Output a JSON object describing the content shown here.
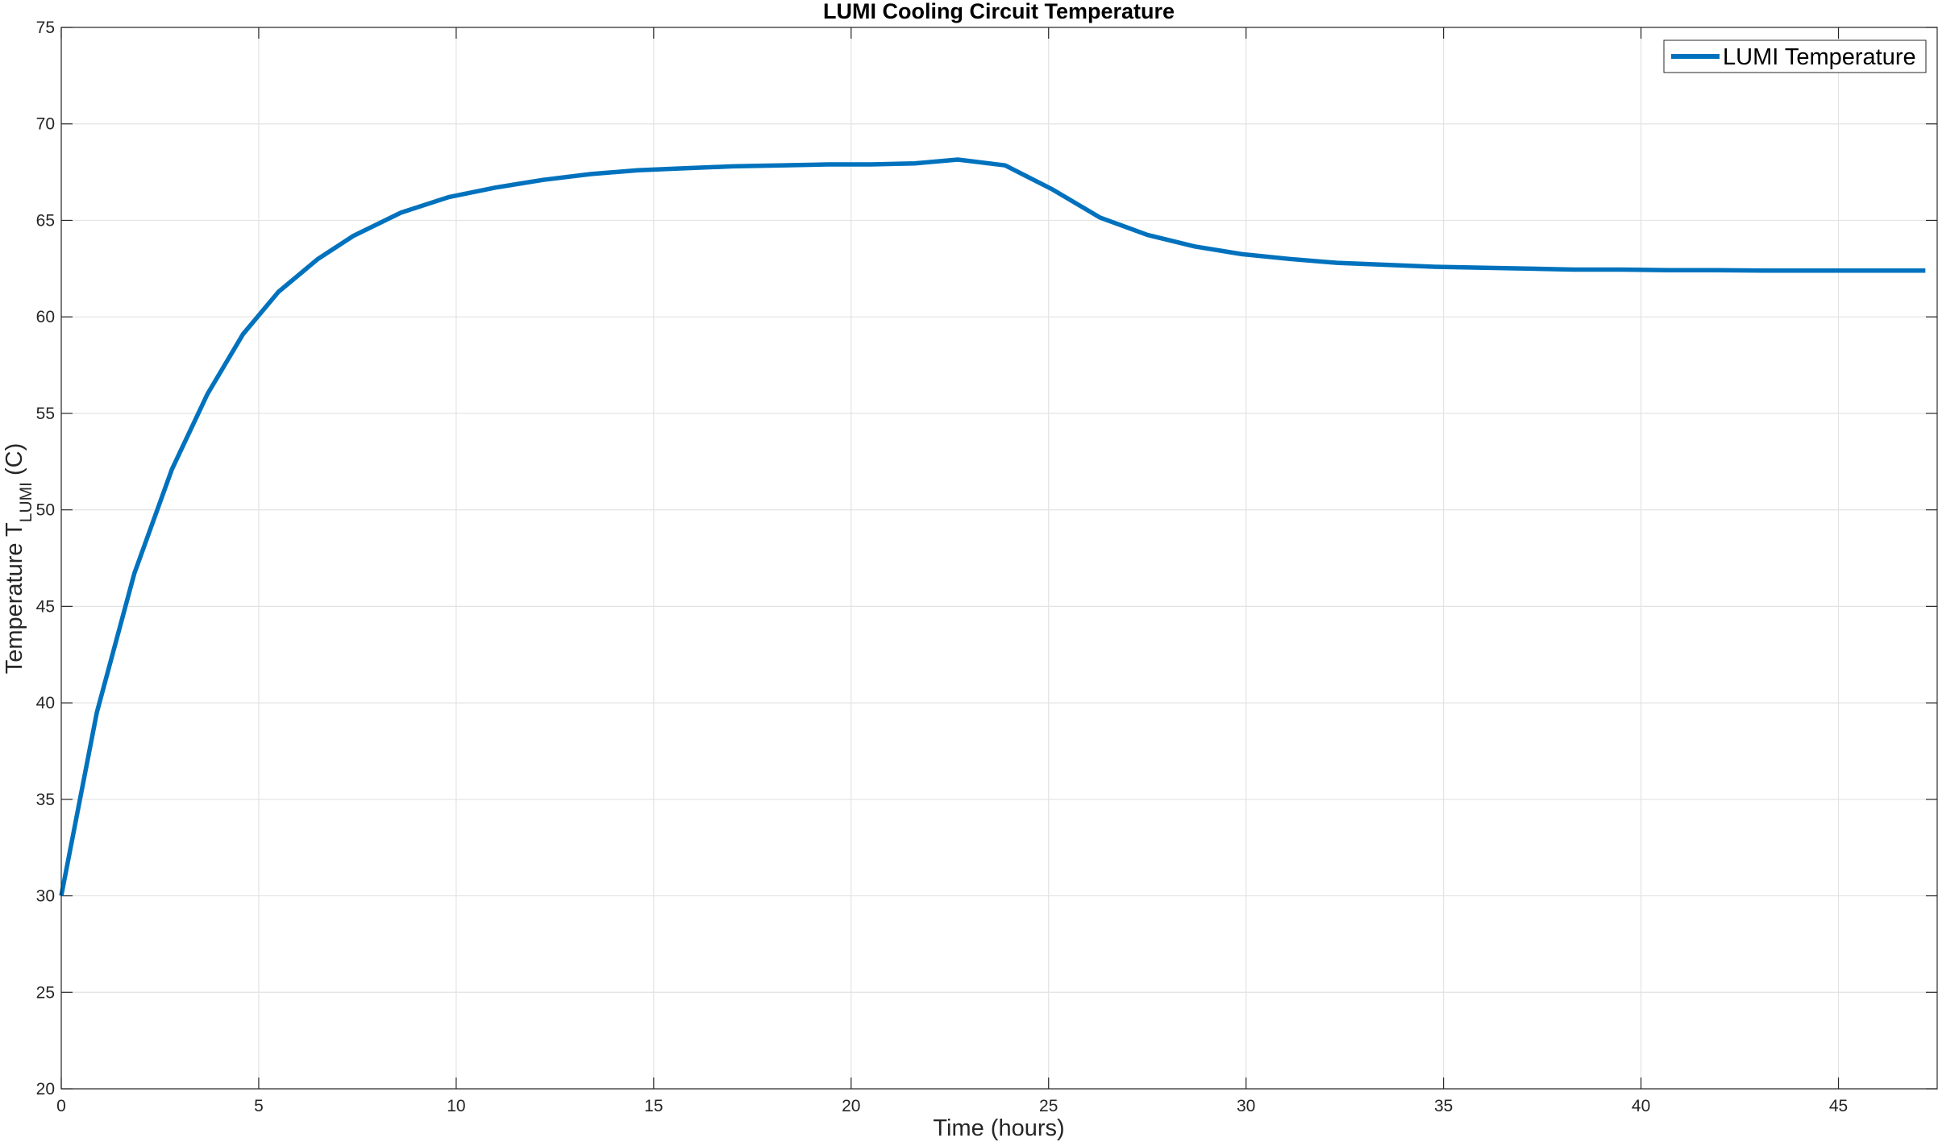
{
  "chart_data": {
    "type": "line",
    "title": "LUMI Cooling Circuit Temperature",
    "xlabel": "Time (hours)",
    "ylabel": {
      "prefix": "Temperature  T",
      "subscript": "LUMI",
      "suffix": " (C)"
    },
    "xlim": [
      0,
      47.5
    ],
    "ylim": [
      20,
      75
    ],
    "xticks": [
      0,
      5,
      10,
      15,
      20,
      25,
      30,
      35,
      40,
      45
    ],
    "yticks": [
      20,
      25,
      30,
      35,
      40,
      45,
      50,
      55,
      60,
      65,
      70,
      75
    ],
    "grid": true,
    "legend_position": "top-right",
    "series": [
      {
        "name": "LUMI Temperature",
        "color": "#0072BD",
        "x": [
          0,
          0.9,
          1.85,
          2.8,
          3.7,
          4.6,
          5.5,
          6.5,
          7.4,
          8.6,
          9.8,
          11.0,
          12.2,
          13.4,
          14.6,
          15.8,
          17.0,
          18.2,
          19.4,
          20.5,
          21.6,
          22.7,
          23.9,
          25.1,
          26.3,
          27.5,
          28.7,
          29.9,
          31.1,
          32.3,
          33.5,
          34.7,
          35.9,
          37.1,
          38.3,
          39.5,
          40.7,
          41.9,
          43.1,
          44.3,
          45.5,
          46.7,
          47.2
        ],
        "y": [
          30.0,
          39.5,
          46.7,
          52.1,
          56.0,
          59.1,
          61.3,
          63.0,
          64.2,
          65.4,
          66.2,
          66.7,
          67.1,
          67.4,
          67.6,
          67.7,
          67.8,
          67.85,
          67.9,
          67.9,
          67.95,
          68.15,
          67.85,
          66.6,
          65.15,
          64.25,
          63.65,
          63.25,
          63.0,
          62.8,
          62.7,
          62.6,
          62.55,
          62.5,
          62.45,
          62.45,
          62.42,
          62.42,
          62.4,
          62.4,
          62.4,
          62.4,
          62.4
        ]
      }
    ]
  }
}
